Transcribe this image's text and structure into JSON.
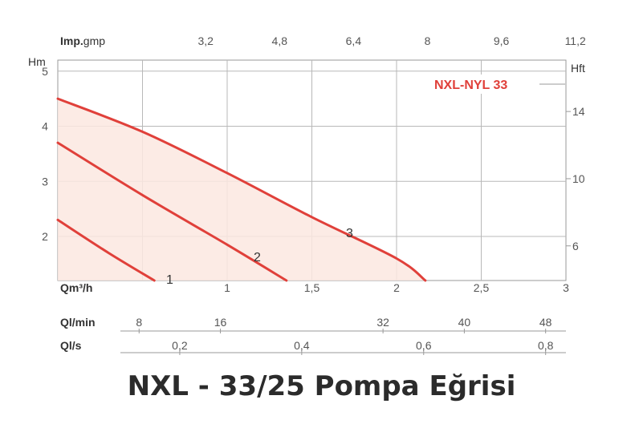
{
  "caption": "NXL - 33/25 Pompa Eğrisi",
  "chart_data": {
    "type": "line",
    "model_label": "NXL-NYL 33",
    "x_axis": {
      "label": "Qm³/h",
      "range": [
        0,
        3
      ],
      "ticks": [
        0.5,
        1,
        1.5,
        2,
        2.5,
        3
      ],
      "tick_labels": [
        "",
        "1",
        "1,5",
        "2",
        "2,5",
        "3"
      ]
    },
    "y_axis": {
      "label": "Hm",
      "range": [
        1.2,
        5.2
      ],
      "ticks": [
        2,
        3,
        4,
        5
      ],
      "tick_labels": [
        "2",
        "3",
        "4",
        "5"
      ]
    },
    "top_axis": {
      "label_bold": "Imp.",
      "label_rest": "gmp",
      "ticks": [
        3.2,
        4.8,
        6.4,
        8,
        9.6,
        11.2
      ],
      "tick_labels": [
        "3,2",
        "4,8",
        "6,4",
        "8",
        "9,6",
        "11,2"
      ]
    },
    "right_axis": {
      "label": "Hft",
      "ticks": [
        6,
        10,
        14
      ],
      "tick_labels": [
        "6",
        "10",
        "14"
      ]
    },
    "lmin_axis": {
      "label": "Ql/min",
      "ticks": [
        8,
        16,
        32,
        40,
        48
      ],
      "tick_labels": [
        "8",
        "16",
        "32",
        "40",
        "48"
      ]
    },
    "ls_axis": {
      "label": "Ql/s",
      "ticks": [
        0.2,
        0.4,
        0.6,
        0.8
      ],
      "tick_labels": [
        "0,2",
        "0,4",
        "0,6",
        "0,8"
      ]
    },
    "series": [
      {
        "name": "3",
        "color": "#e0403a",
        "x": [
          0,
          0.5,
          1,
          1.5,
          2,
          2.17
        ],
        "y": [
          4.5,
          3.9,
          3.15,
          2.35,
          1.6,
          1.2
        ]
      },
      {
        "name": "2",
        "color": "#e0403a",
        "x": [
          0,
          0.5,
          1,
          1.35
        ],
        "y": [
          3.7,
          2.75,
          1.85,
          1.2
        ]
      },
      {
        "name": "1",
        "color": "#e0403a",
        "x": [
          0,
          0.3,
          0.57
        ],
        "y": [
          2.3,
          1.7,
          1.2
        ]
      }
    ],
    "grid": true,
    "fill_color": "#fbe7e0"
  }
}
